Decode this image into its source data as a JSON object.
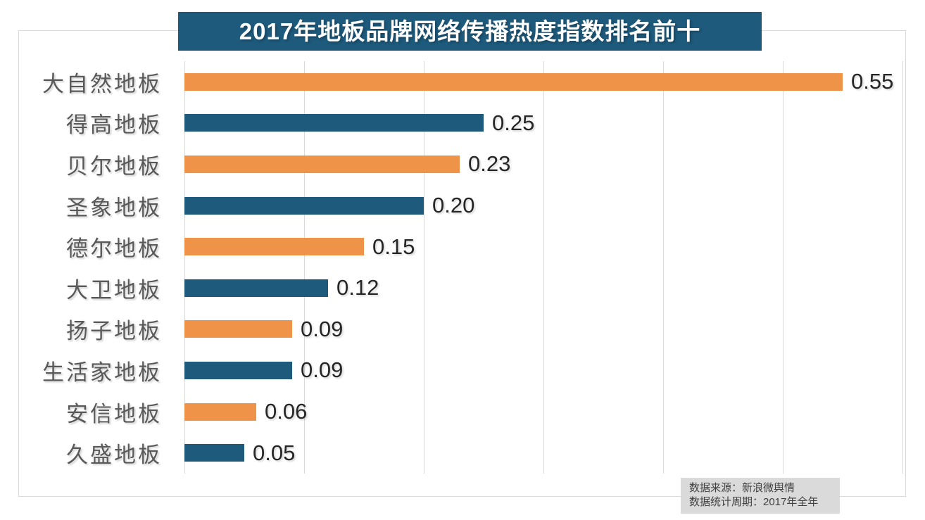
{
  "title": "2017年地板品牌网络传播热度指数排名前十",
  "footer": {
    "line1": "数据来源：新浪微舆情",
    "line2": "数据统计周期：2017年全年"
  },
  "colors": {
    "orange": "#ef9349",
    "blue": "#1e5a7c",
    "title_bg": "#1e5a7c",
    "title_text": "#ffffff",
    "grid": "#d9d9d9",
    "category_text": "#595959",
    "value_text": "#262626",
    "footer_bg": "#dadada",
    "footer_text": "#404040"
  },
  "chart_data": {
    "type": "bar",
    "orientation": "horizontal",
    "title": "2017年地板品牌网络传播热度指数排名前十",
    "categories": [
      "大自然地板",
      "得高地板",
      "贝尔地板",
      "圣象地板",
      "德尔地板",
      "大卫地板",
      "扬子地板",
      "生活家地板",
      "安信地板",
      "久盛地板"
    ],
    "values": [
      0.55,
      0.25,
      0.23,
      0.2,
      0.15,
      0.12,
      0.09,
      0.09,
      0.06,
      0.05
    ],
    "value_labels": [
      "0.55",
      "0.25",
      "0.23",
      "0.20",
      "0.15",
      "0.12",
      "0.09",
      "0.09",
      "0.06",
      "0.05"
    ],
    "bar_color_pattern": [
      "orange",
      "blue"
    ],
    "xlabel": "",
    "ylabel": "",
    "xlim": [
      0,
      0.6
    ],
    "grid_step": 0.1,
    "grid": true,
    "legend": false,
    "data_labels": true,
    "source_line1": "数据来源：新浪微舆情",
    "source_line2": "数据统计周期：2017年全年"
  }
}
